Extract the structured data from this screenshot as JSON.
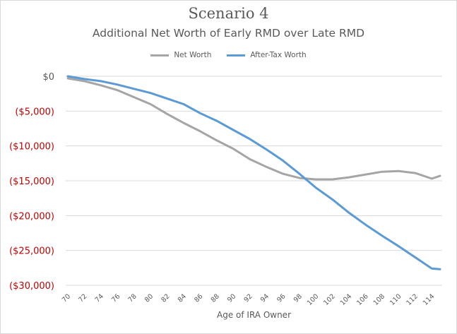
{
  "chart_data": {
    "type": "line",
    "title": "Scenario 4",
    "subtitle": "Additional Net Worth of Early RMD over Late RMD",
    "xlabel": "Age of IRA Owner",
    "ylabel": "",
    "ylim": [
      -30000,
      0
    ],
    "yticks": [
      0,
      -5000,
      -10000,
      -15000,
      -20000,
      -25000,
      -30000
    ],
    "ytick_labels": [
      "$0",
      "($5,000)",
      "($10,000)",
      "($15,000)",
      "($20,000)",
      "($25,000)",
      "($30,000)"
    ],
    "xlim": [
      70,
      115
    ],
    "xtick_labels": [
      "70",
      "72",
      "74",
      "76",
      "78",
      "80",
      "82",
      "84",
      "86",
      "88",
      "90",
      "92",
      "94",
      "96",
      "98",
      "100",
      "102",
      "104",
      "106",
      "108",
      "110",
      "112",
      "114"
    ],
    "grid": true,
    "legend_position": "top",
    "x": [
      70,
      72,
      74,
      76,
      78,
      80,
      82,
      84,
      86,
      88,
      90,
      92,
      94,
      96,
      98,
      100,
      102,
      104,
      106,
      108,
      110,
      112,
      114,
      115
    ],
    "series": [
      {
        "name": "Net Worth",
        "color": "#a5a5a5",
        "values": [
          -300,
          -700,
          -1300,
          -2000,
          -3000,
          -4000,
          -5400,
          -6700,
          -7900,
          -9200,
          -10400,
          -11900,
          -13000,
          -14000,
          -14600,
          -14800,
          -14800,
          -14500,
          -14100,
          -13700,
          -13600,
          -13900,
          -14700,
          -14300
        ]
      },
      {
        "name": "After-Tax Worth",
        "color": "#5b9bd5",
        "values": [
          0,
          -400,
          -700,
          -1200,
          -1800,
          -2400,
          -3200,
          -4000,
          -5300,
          -6400,
          -7700,
          -9000,
          -10500,
          -12100,
          -14000,
          -16000,
          -17700,
          -19600,
          -21300,
          -22900,
          -24400,
          -26000,
          -27600,
          -27700
        ]
      }
    ],
    "colors": {
      "negative_tick": "#c00000",
      "zero_tick": "#595959",
      "gridline": "#d9d9d9"
    }
  }
}
